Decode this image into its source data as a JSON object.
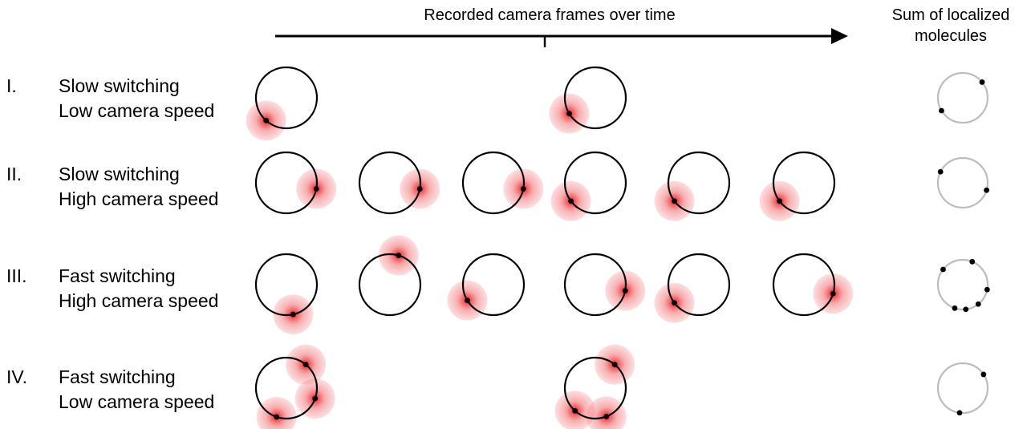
{
  "header": {
    "timeline_label": "Recorded camera frames over time",
    "sum_label_line1": "Sum of localized",
    "sum_label_line2": "molecules"
  },
  "rows": [
    {
      "numeral": "I.",
      "line1": "Slow switching",
      "line2": "Low camera speed",
      "frames": [
        [
          [
            2.3
          ]
        ],
        [
          [
            2.6
          ]
        ]
      ],
      "sum": [
        2.6,
        5.6
      ]
    },
    {
      "numeral": "II.",
      "line1": "Slow switching",
      "line2": "High camera speed",
      "frames": [
        [
          [
            0.2
          ]
        ],
        [
          [
            0.2
          ]
        ],
        [
          [
            0.2
          ]
        ],
        [
          [
            2.5
          ]
        ],
        [
          [
            2.5
          ]
        ],
        [
          [
            2.5
          ]
        ]
      ],
      "sum": [
        0.3,
        3.6
      ]
    },
    {
      "numeral": "III.",
      "line1": "Fast switching",
      "line2": "High camera speed",
      "frames": [
        [
          [
            1.35
          ]
        ],
        [
          [
            5.0
          ]
        ],
        [
          [
            2.6
          ]
        ],
        [
          [
            0.2
          ]
        ],
        [
          [
            2.5
          ]
        ],
        [
          [
            0.3
          ]
        ]
      ],
      "sum": [
        1.9,
        1.45,
        0.9,
        0.2,
        3.8,
        5.1
      ]
    },
    {
      "numeral": "IV.",
      "line1": "Fast switching",
      "line2": "Low camera speed",
      "frames": [
        [
          [
            1.9
          ],
          [
            0.35
          ],
          [
            5.4
          ]
        ],
        [
          [
            1.2
          ],
          [
            2.3
          ],
          [
            5.4
          ]
        ]
      ],
      "sum": [
        1.7,
        5.7
      ]
    }
  ],
  "colors": {
    "ring": "#000000",
    "sum_ring": "#bdbdbd",
    "emitter": "#e8141c",
    "dot": "#000000"
  }
}
